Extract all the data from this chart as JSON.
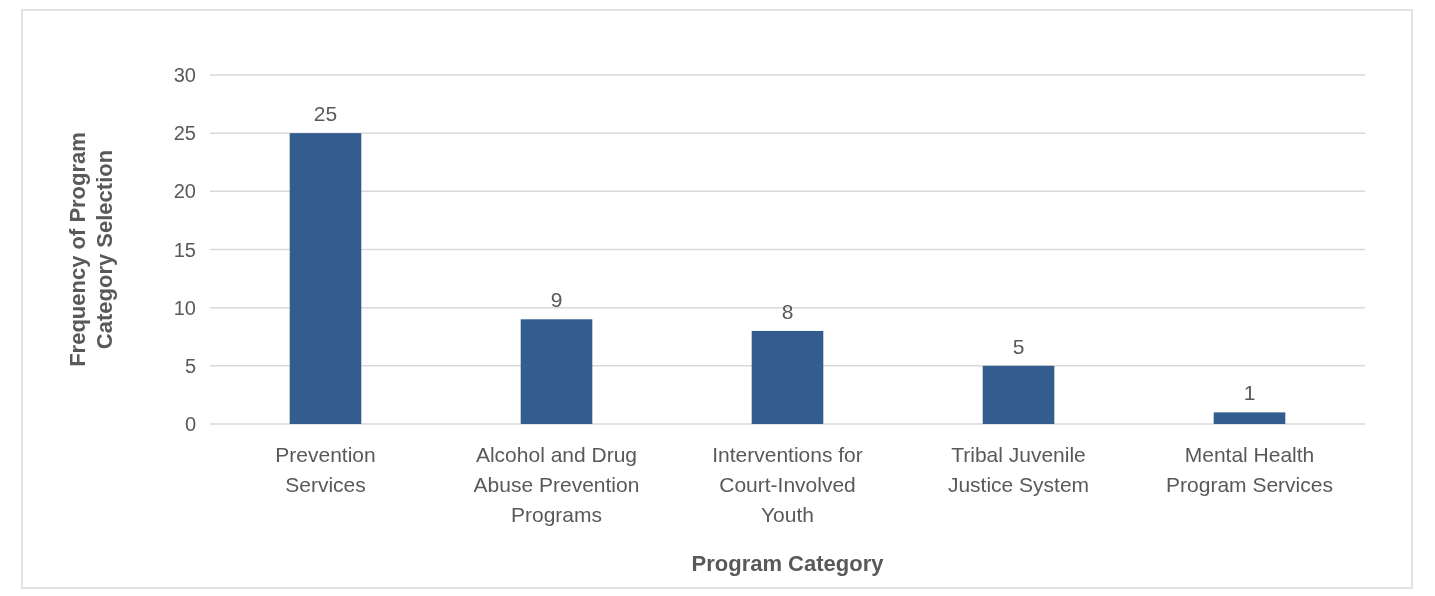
{
  "chart_data": {
    "type": "bar",
    "xlabel": "Program Category",
    "ylabel": "Frequency of Program Category Selection",
    "categories": [
      "Prevention Services",
      "Alcohol and Drug Abuse Prevention Programs",
      "Interventions for Court-Involved Youth",
      "Tribal Juvenile Justice System",
      "Mental Health Program Services"
    ],
    "values": [
      25,
      9,
      8,
      5,
      1
    ],
    "color": "#335d8f",
    "ylim": [
      0,
      30
    ],
    "yticks": [
      0,
      5,
      10,
      15,
      20,
      25,
      30
    ],
    "grid": "y",
    "data_labels": true
  }
}
